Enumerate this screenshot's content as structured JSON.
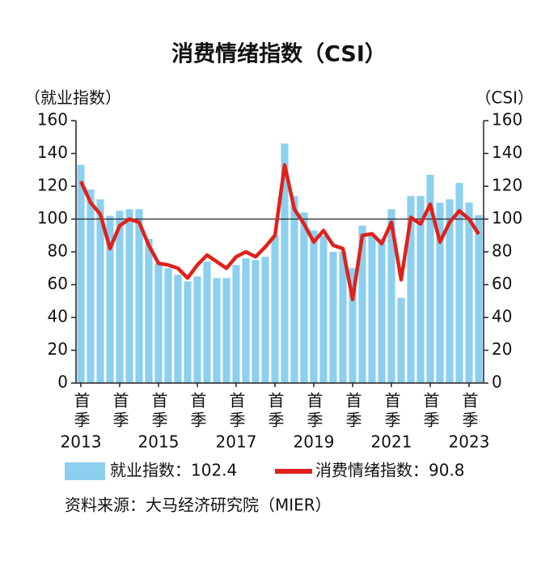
{
  "chart_data": {
    "type": "bar-line",
    "title": "消费情绪指数（CSI）",
    "y_label": "（就业指数）",
    "y2_label": "（CSI）",
    "source": "资料来源：大马经济研究院（MIER）",
    "categories": [
      "首季",
      null,
      null,
      null,
      "首季",
      null,
      null,
      null,
      "首季",
      null,
      null,
      null,
      "首季",
      null,
      null,
      null,
      "首季",
      null,
      null,
      null,
      "首季",
      null,
      null,
      null,
      "首季",
      null,
      null,
      null,
      "首季",
      null,
      null,
      null,
      "首季",
      null,
      null,
      null,
      "首季",
      null,
      null,
      null,
      "首季",
      null
    ],
    "year_labels": [
      "2013",
      null,
      null,
      null,
      null,
      null,
      null,
      null,
      "2015",
      null,
      null,
      null,
      null,
      null,
      null,
      null,
      "2017",
      null,
      null,
      null,
      null,
      null,
      null,
      null,
      "2019",
      null,
      null,
      null,
      null,
      null,
      null,
      null,
      "2021",
      null,
      null,
      null,
      null,
      null,
      null,
      null,
      "2023",
      null
    ],
    "series": [
      {
        "name": "就业指数：102.4",
        "type": "bar",
        "color": "#8ccfee",
        "values": [
          133,
          118,
          112,
          102,
          105,
          106,
          106,
          88,
          73,
          70,
          66,
          62,
          65,
          74,
          64,
          64,
          72,
          76,
          75,
          77,
          90,
          146,
          114,
          104,
          93,
          90,
          80,
          80,
          70,
          96,
          90,
          88,
          106,
          52,
          114,
          114,
          127,
          110,
          112,
          122,
          110,
          102.4
        ]
      },
      {
        "name": "消费情绪指数：90.8",
        "type": "line",
        "axis": "y2",
        "color": "#e0211b",
        "values": [
          123,
          110,
          103,
          82,
          96,
          100,
          98,
          84,
          73,
          72,
          70,
          64,
          72,
          78,
          74,
          70,
          77,
          80,
          77,
          83,
          90,
          133,
          106,
          97,
          86,
          93,
          84,
          82,
          51,
          90,
          91,
          85,
          98,
          63,
          101,
          97,
          109,
          86,
          98,
          105,
          100,
          90.8
        ]
      }
    ],
    "ylim": [
      0,
      160
    ],
    "yticks": [
      0,
      20,
      40,
      60,
      80,
      100,
      120,
      140,
      160
    ],
    "y2lim": [
      0,
      160
    ],
    "y2ticks": [
      0,
      20,
      40,
      60,
      80,
      100,
      120,
      140,
      160
    ],
    "reference_line": 100
  }
}
